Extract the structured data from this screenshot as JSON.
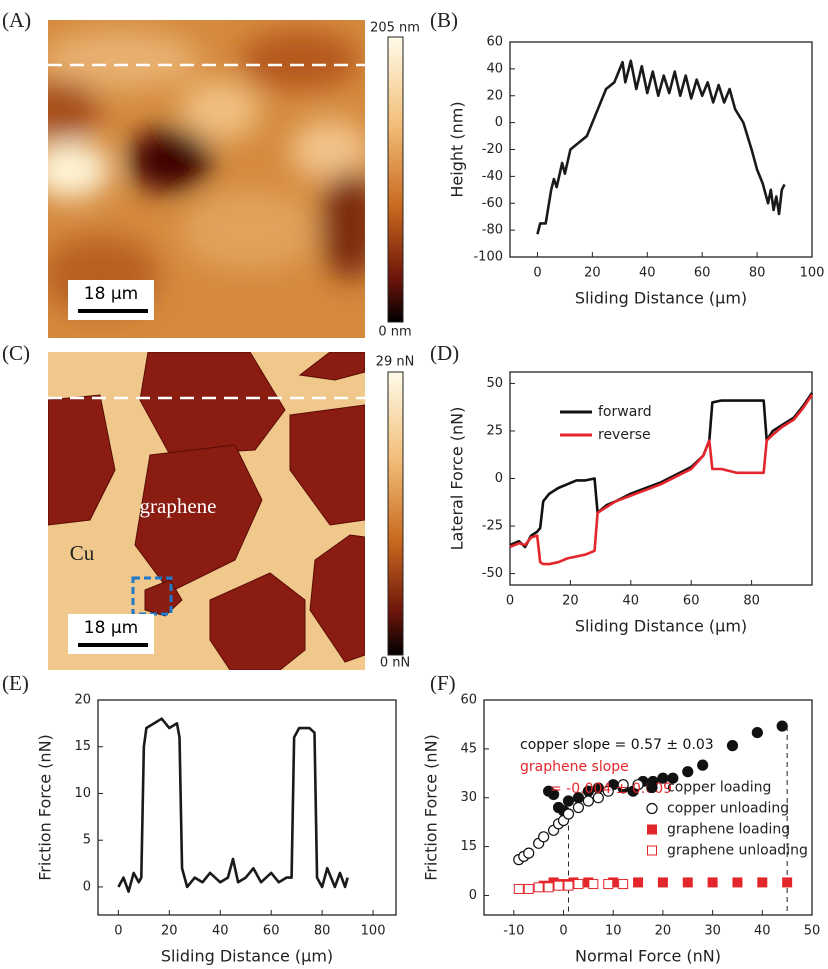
{
  "chart_data": [
    {
      "type": "image",
      "label": "(A)",
      "colorbar_labels": [
        "205 nm",
        "0 nm"
      ],
      "scale_bar": "18 µm",
      "annotations": []
    },
    {
      "type": "line",
      "label": "(B)",
      "x_label": "Sliding Distance (µm)",
      "y_label": "Height (nm)",
      "xlim": [
        -10,
        100
      ],
      "xticks": [
        0,
        20,
        40,
        60,
        80,
        100
      ],
      "ylim": [
        -100,
        60
      ],
      "yticks": [
        -100,
        -80,
        -60,
        -40,
        -20,
        0,
        20,
        40,
        60
      ],
      "color": "#1a1a1a",
      "x": [
        0,
        1,
        3,
        5,
        6,
        7,
        9,
        10,
        12,
        15,
        18,
        20,
        22,
        25,
        28,
        31,
        32,
        34,
        36,
        38,
        40,
        42,
        44,
        46,
        48,
        50,
        52,
        54,
        56,
        58,
        60,
        62,
        64,
        66,
        68,
        70,
        72,
        75,
        78,
        80,
        82,
        84,
        85,
        86,
        87,
        88,
        89,
        90
      ],
      "values": [
        -83,
        -75,
        -75,
        -50,
        -42,
        -48,
        -30,
        -38,
        -20,
        -15,
        -10,
        0,
        10,
        25,
        30,
        45,
        30,
        46,
        25,
        42,
        22,
        38,
        20,
        35,
        22,
        38,
        20,
        35,
        18,
        32,
        20,
        30,
        15,
        28,
        15,
        25,
        10,
        0,
        -20,
        -35,
        -45,
        -60,
        -50,
        -65,
        -55,
        -68,
        -50,
        -46
      ]
    },
    {
      "type": "image",
      "label": "(C)",
      "colorbar_labels": [
        "29 nN",
        "0 nN"
      ],
      "scale_bar": "18 µm",
      "annotations": [
        "graphene",
        "Cu"
      ]
    },
    {
      "type": "line",
      "label": "(D)",
      "x_label": "Sliding Distance (µm)",
      "y_label": "Lateral Force (nN)",
      "xlim": [
        0,
        100
      ],
      "xticks": [
        0,
        20,
        40,
        60,
        80
      ],
      "ylim": [
        -56,
        56
      ],
      "yticks": [
        -50,
        -25,
        0,
        25,
        50
      ],
      "legend": "upper left",
      "x": [
        0,
        3,
        5,
        7,
        9,
        10,
        11,
        13,
        16,
        19,
        22,
        25,
        28,
        29,
        32,
        35,
        40,
        45,
        50,
        55,
        60,
        64,
        66,
        67,
        70,
        75,
        82,
        84,
        85,
        87,
        90,
        94,
        97,
        100
      ],
      "series": [
        {
          "name": "forward",
          "color": "#111111",
          "values": [
            -35,
            -33,
            -36,
            -30,
            -28,
            -26,
            -12,
            -8,
            -5,
            -3,
            -1,
            -1,
            0,
            -18,
            -14,
            -12,
            -8,
            -5,
            -2,
            2,
            6,
            12,
            20,
            40,
            41,
            41,
            41,
            41,
            20,
            25,
            28,
            32,
            38,
            45
          ]
        },
        {
          "name": "reverse",
          "color": "#e3262b",
          "values": [
            -36,
            -34,
            -35,
            -31,
            -30,
            -44,
            -45,
            -45,
            -44,
            -42,
            -41,
            -40,
            -38,
            -18,
            -15,
            -12,
            -9,
            -6,
            -3,
            1,
            5,
            12,
            20,
            5,
            5,
            3,
            3,
            3,
            20,
            23,
            27,
            31,
            37,
            44
          ]
        }
      ]
    },
    {
      "type": "line",
      "label": "(E)",
      "x_label": "Sliding Distance (µm)",
      "y_label": "Friction Force (nN)",
      "xlim": [
        -8,
        109
      ],
      "xticks": [
        0,
        20,
        40,
        60,
        80,
        100
      ],
      "ylim": [
        -3,
        20
      ],
      "yticks": [
        0,
        5,
        10,
        15,
        20
      ],
      "color": "#1a1a1a",
      "x": [
        0,
        2,
        4,
        6,
        8,
        9,
        10,
        11,
        14,
        17,
        20,
        23,
        24,
        25,
        27,
        30,
        33,
        36,
        40,
        43,
        45,
        47,
        50,
        53,
        56,
        60,
        63,
        66,
        68,
        69,
        71,
        75,
        77,
        78,
        80,
        82,
        85,
        87,
        89,
        90
      ],
      "values": [
        0,
        1,
        -0.5,
        1.5,
        0.5,
        1,
        15,
        17,
        17.5,
        18,
        17,
        17.5,
        16,
        2,
        0,
        1,
        0.5,
        1.5,
        0.5,
        1,
        3,
        0.5,
        1,
        2,
        0.5,
        1.5,
        0.5,
        1,
        1,
        16,
        17,
        17,
        16.5,
        1,
        0,
        2,
        0,
        1.5,
        0,
        1
      ]
    },
    {
      "type": "scatter",
      "label": "(F)",
      "x_label": "Normal Force (nN)",
      "y_label": "Friction Force (nN)",
      "xlim": [
        -16,
        50
      ],
      "xticks": [
        -10,
        0,
        10,
        20,
        30,
        40,
        50
      ],
      "ylim": [
        -6,
        60
      ],
      "yticks": [
        0,
        15,
        30,
        45,
        60
      ],
      "legend": "center right",
      "annotations": [
        {
          "text": "copper slope = 0.57 ± 0.03",
          "color": "#111111"
        },
        {
          "text": "graphene slope",
          "color": "#e3262b"
        },
        {
          "text": "= -0.004 ± 0.009",
          "color": "#e3262b"
        }
      ],
      "ref_lines": [
        {
          "x": 1,
          "y": 27
        },
        {
          "x": 45,
          "y": 52
        }
      ],
      "series": [
        {
          "name": "copper loading",
          "color": "#111111",
          "marker": "circle",
          "filled": true,
          "x": [
            -3,
            -2,
            -1,
            0,
            1,
            3,
            5,
            7,
            10,
            12,
            14,
            16,
            18,
            20,
            22,
            25,
            28,
            34,
            39,
            44
          ],
          "values": [
            32,
            31,
            27,
            26,
            29,
            30,
            32,
            33,
            34,
            33,
            32,
            35,
            35,
            36,
            36,
            38,
            40,
            46,
            50,
            52
          ]
        },
        {
          "name": "copper unloading",
          "color": "#111111",
          "marker": "circle",
          "filled": false,
          "x": [
            -9,
            -8,
            -7,
            -5,
            -4,
            -2,
            -1,
            0,
            1,
            3,
            5,
            7,
            9,
            12,
            15
          ],
          "values": [
            11,
            12,
            13,
            16,
            18,
            20,
            22,
            23,
            25,
            27,
            29,
            30,
            32,
            34,
            34
          ]
        },
        {
          "name": "graphene loading",
          "color": "#e3262b",
          "marker": "square",
          "filled": true,
          "x": [
            -4,
            -2,
            0,
            2,
            5,
            10,
            15,
            20,
            25,
            30,
            35,
            40,
            45
          ],
          "values": [
            3,
            4,
            3.5,
            4,
            4,
            4,
            4,
            4,
            4,
            4,
            4,
            4,
            4
          ]
        },
        {
          "name": "graphene unloading",
          "color": "#e3262b",
          "marker": "square",
          "filled": false,
          "x": [
            -9,
            -7,
            -5,
            -3,
            -1,
            1,
            3,
            6,
            9,
            12
          ],
          "values": [
            2,
            2,
            2.5,
            2.5,
            3,
            3,
            3.5,
            3.5,
            3.5,
            3.5
          ]
        }
      ]
    }
  ]
}
